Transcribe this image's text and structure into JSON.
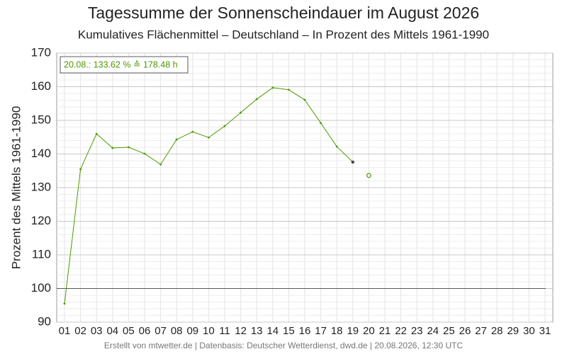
{
  "chart_data": {
    "type": "line",
    "title": "Tagessumme der Sonnenscheindauer im August 2026",
    "subtitle": "Kumulatives Flächenmittel – Deutschland – In Prozent des Mittels 1961-1990",
    "y_label": "Prozent des Mittels 1961-1990",
    "footer": "Erstellt von mtwetter.de | Datenbasis: Deutscher Wetterdienst, dwd.de | 20.08.2026, 12:30 UTC",
    "annotation": "20.08.: 133.62 % ≙ 178.48 h",
    "categories": [
      "01",
      "02",
      "03",
      "04",
      "05",
      "06",
      "07",
      "08",
      "09",
      "10",
      "11",
      "12",
      "13",
      "14",
      "15",
      "16",
      "17",
      "18",
      "19",
      "20",
      "21",
      "22",
      "23",
      "24",
      "25",
      "26",
      "27",
      "28",
      "29",
      "30",
      "31"
    ],
    "series": [
      {
        "color": "#4d9a00",
        "values": [
          95.5,
          135.5,
          146.0,
          141.8,
          142.0,
          140.1,
          136.9,
          144.3,
          146.6,
          144.9,
          148.3,
          152.3,
          156.3,
          159.7,
          159.1,
          156.1,
          149.2,
          142.2,
          137.6,
          null,
          null,
          null,
          null,
          null,
          null,
          null,
          null,
          null,
          null,
          null,
          null
        ]
      }
    ],
    "current_point": {
      "category_index": 19,
      "value": 133.62,
      "color": "#4d9a00"
    },
    "reference_line": 100,
    "ylim": [
      90,
      170
    ],
    "yticks": [
      90,
      100,
      110,
      120,
      130,
      140,
      150,
      160,
      170
    ],
    "grid": true
  }
}
